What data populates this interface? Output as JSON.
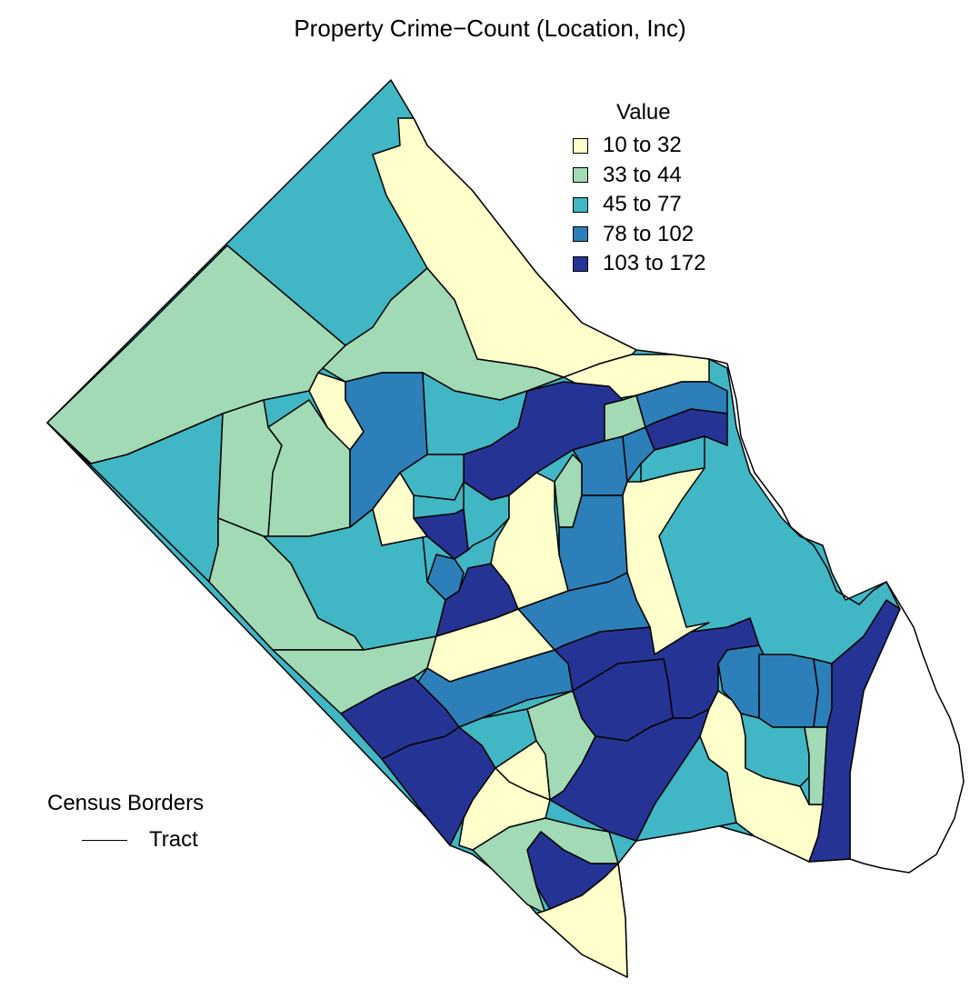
{
  "title": "Property Crime−Count (Location, Inc)",
  "legend": {
    "title": "Value",
    "classes": [
      {
        "label": "10 to 32",
        "color": "#FFFFCC"
      },
      {
        "label": "33 to 44",
        "color": "#A1DAB4"
      },
      {
        "label": "45 to 77",
        "color": "#41B6C4"
      },
      {
        "label": "78 to 102",
        "color": "#2C7FB8"
      },
      {
        "label": "103 to 172",
        "color": "#253494"
      }
    ]
  },
  "borders": {
    "title": "Census Borders",
    "item_label": "Tract"
  }
}
